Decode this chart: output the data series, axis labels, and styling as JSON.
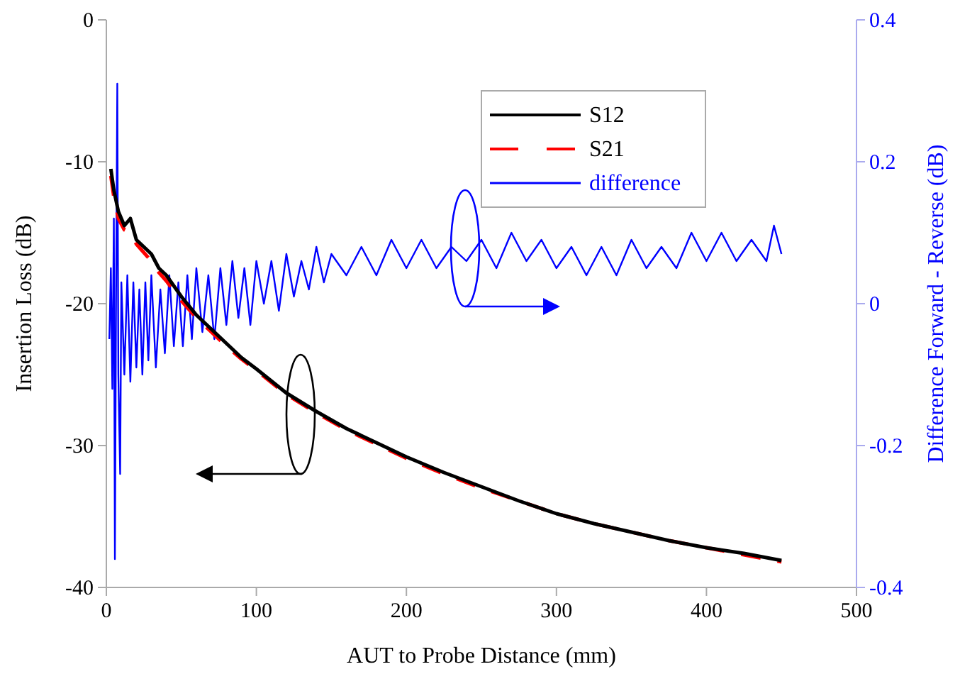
{
  "chart_data": {
    "type": "line",
    "xlabel": "AUT to Probe Distance (mm)",
    "ylabel": "Insertion Loss (dB)",
    "y2label": "Difference Forward - Reverse (dB)",
    "xlim": [
      0,
      500
    ],
    "xticks": [
      0,
      100,
      200,
      300,
      400,
      500
    ],
    "ylim": [
      -40,
      0
    ],
    "yticks": [
      -40,
      -30,
      -20,
      -10,
      0
    ],
    "y2lim": [
      -0.4,
      0.4
    ],
    "y2ticks": [
      -0.4,
      -0.2,
      0,
      0.2,
      0.4
    ],
    "legend": "top right",
    "grid": false,
    "series": [
      {
        "name": "S12",
        "color": "#000000",
        "line_style": "solid",
        "x": [
          3,
          5,
          8,
          12,
          16,
          20,
          25,
          30,
          35,
          40,
          50,
          60,
          70,
          80,
          90,
          100,
          120,
          140,
          160,
          180,
          200,
          225,
          250,
          275,
          300,
          325,
          350,
          375,
          400,
          425,
          450
        ],
        "values": [
          -10.5,
          -12,
          -13.5,
          -14.5,
          -14,
          -15.5,
          -16,
          -16.5,
          -17.5,
          -18,
          -19.5,
          -20.8,
          -21.8,
          -22.8,
          -23.8,
          -24.6,
          -26.3,
          -27.6,
          -28.8,
          -29.8,
          -30.8,
          -31.9,
          -32.9,
          -33.9,
          -34.8,
          -35.5,
          -36.1,
          -36.7,
          -37.2,
          -37.6,
          -38.1
        ]
      },
      {
        "name": "S21",
        "color": "#ff0000",
        "line_style": "dashed",
        "x": [
          3,
          5,
          8,
          12,
          16,
          20,
          25,
          30,
          35,
          40,
          50,
          60,
          70,
          80,
          90,
          100,
          120,
          140,
          160,
          180,
          200,
          225,
          250,
          275,
          300,
          325,
          350,
          375,
          400,
          425,
          450
        ],
        "values": [
          -11,
          -12.5,
          -14,
          -14.8,
          -15,
          -15.8,
          -16.4,
          -17,
          -17.8,
          -18.4,
          -19.8,
          -21,
          -22,
          -23,
          -23.9,
          -24.7,
          -26.4,
          -27.7,
          -28.9,
          -29.9,
          -30.9,
          -32,
          -33,
          -33.9,
          -34.8,
          -35.5,
          -36.1,
          -36.7,
          -37.2,
          -37.7,
          -38.2
        ]
      },
      {
        "name": "difference",
        "color": "#0000ff",
        "axis": "y2",
        "line_style": "solid",
        "x": [
          2,
          3,
          4,
          5,
          5.7,
          6.5,
          7.3,
          8,
          9.2,
          10,
          12,
          14,
          16,
          18,
          20,
          22,
          24,
          26,
          28,
          30,
          33,
          36,
          39,
          42,
          45,
          48,
          51,
          54,
          57,
          60,
          64,
          68,
          72,
          76,
          80,
          84,
          88,
          92,
          96,
          100,
          105,
          110,
          115,
          120,
          125,
          130,
          135,
          140,
          145,
          150,
          160,
          170,
          180,
          190,
          200,
          210,
          220,
          230,
          240,
          250,
          260,
          270,
          280,
          290,
          300,
          310,
          320,
          330,
          340,
          350,
          360,
          370,
          380,
          390,
          400,
          410,
          420,
          430,
          440,
          445,
          450
        ],
        "values": [
          -0.05,
          0.05,
          -0.12,
          0.12,
          -0.36,
          0.02,
          0.31,
          -0.1,
          -0.24,
          0.03,
          -0.1,
          0.04,
          -0.11,
          0.03,
          -0.09,
          0.02,
          -0.1,
          0.03,
          -0.08,
          0.04,
          -0.09,
          0.02,
          -0.07,
          0.04,
          -0.06,
          0.03,
          -0.06,
          0.04,
          -0.05,
          0.05,
          -0.04,
          0.04,
          -0.05,
          0.05,
          -0.03,
          0.06,
          -0.02,
          0.05,
          -0.03,
          0.06,
          0,
          0.06,
          -0.01,
          0.07,
          0.01,
          0.06,
          0.02,
          0.08,
          0.03,
          0.07,
          0.04,
          0.08,
          0.04,
          0.09,
          0.05,
          0.09,
          0.05,
          0.08,
          0.06,
          0.09,
          0.05,
          0.1,
          0.06,
          0.09,
          0.05,
          0.08,
          0.04,
          0.08,
          0.04,
          0.09,
          0.05,
          0.08,
          0.05,
          0.1,
          0.06,
          0.1,
          0.06,
          0.09,
          0.06,
          0.11,
          0.07
        ]
      }
    ]
  }
}
